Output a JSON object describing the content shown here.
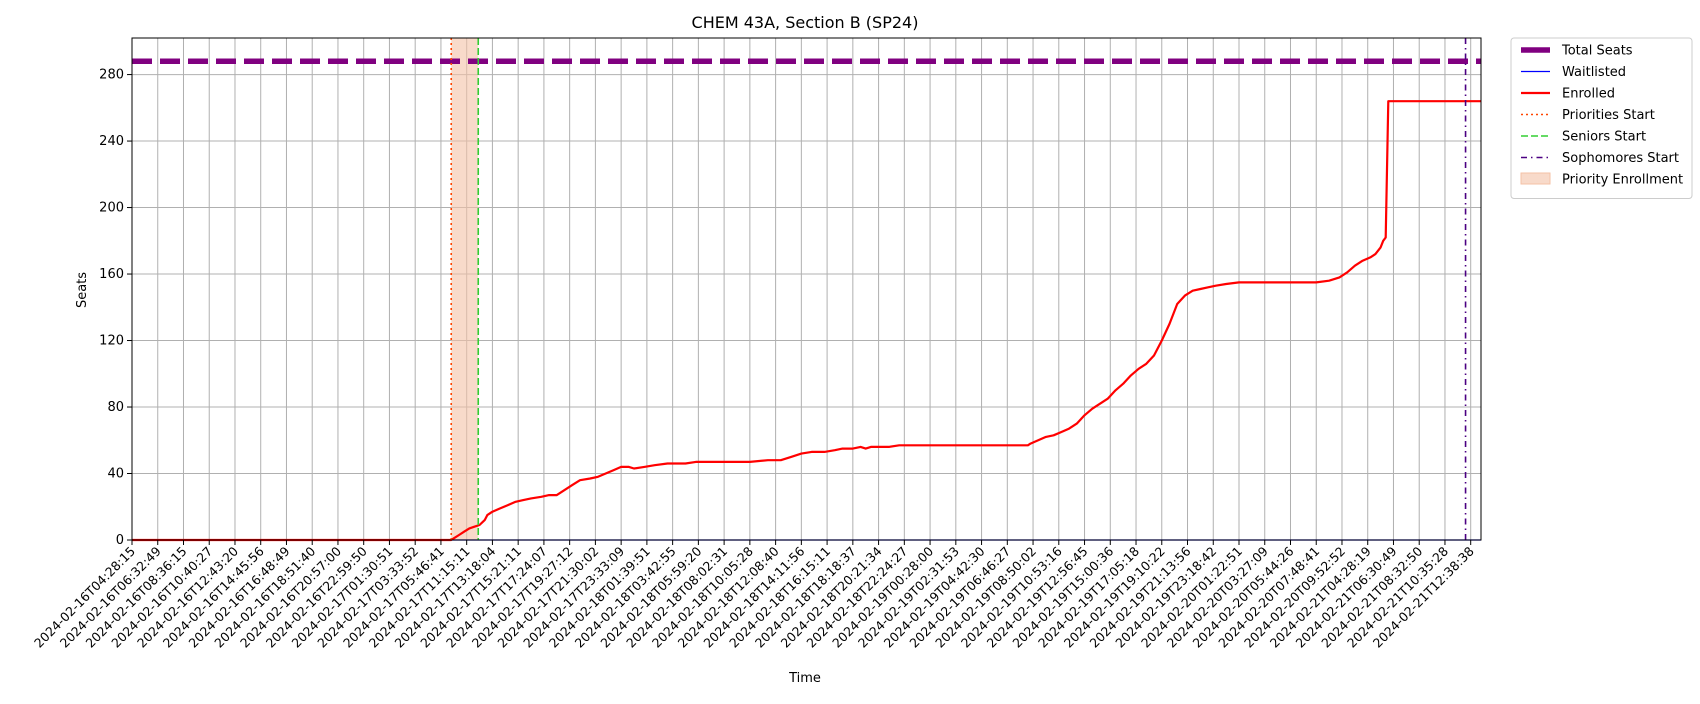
{
  "chart_data": {
    "type": "line",
    "title": "CHEM 43A, Section B (SP24)",
    "xlabel": "Time",
    "ylabel": "Seats",
    "ylim": [
      0,
      302
    ],
    "yticks": [
      0,
      40,
      80,
      120,
      160,
      200,
      240,
      280
    ],
    "grid": true,
    "legend_position": "outside-top-right",
    "x_tick_labels": [
      "2024-02-16T04:28:15",
      "2024-02-16T06:32:49",
      "2024-02-16T08:36:15",
      "2024-02-16T10:40:27",
      "2024-02-16T12:43:20",
      "2024-02-16T14:45:56",
      "2024-02-16T16:48:49",
      "2024-02-16T18:51:40",
      "2024-02-16T20:57:00",
      "2024-02-16T22:59:50",
      "2024-02-17T01:30:51",
      "2024-02-17T03:33:52",
      "2024-02-17T05:46:41",
      "2024-02-17T11:15:11",
      "2024-02-17T13:18:04",
      "2024-02-17T15:21:11",
      "2024-02-17T17:24:07",
      "2024-02-17T19:27:12",
      "2024-02-17T21:30:02",
      "2024-02-17T23:33:09",
      "2024-02-18T01:39:51",
      "2024-02-18T03:42:55",
      "2024-02-18T05:59:20",
      "2024-02-18T08:02:31",
      "2024-02-18T10:05:28",
      "2024-02-18T12:08:40",
      "2024-02-18T14:11:56",
      "2024-02-18T16:15:11",
      "2024-02-18T18:18:37",
      "2024-02-18T20:21:34",
      "2024-02-18T22:24:27",
      "2024-02-19T00:28:00",
      "2024-02-19T02:31:53",
      "2024-02-19T04:42:30",
      "2024-02-19T06:46:27",
      "2024-02-19T08:50:02",
      "2024-02-19T10:53:16",
      "2024-02-19T12:56:45",
      "2024-02-19T15:00:36",
      "2024-02-19T17:05:18",
      "2024-02-19T19:10:22",
      "2024-02-19T21:13:56",
      "2024-02-19T23:18:42",
      "2024-02-20T01:22:51",
      "2024-02-20T03:27:09",
      "2024-02-20T05:44:26",
      "2024-02-20T07:48:41",
      "2024-02-20T09:52:52",
      "2024-02-21T04:28:19",
      "2024-02-21T06:30:49",
      "2024-02-21T08:32:50",
      "2024-02-21T10:35:28",
      "2024-02-21T12:38:38"
    ],
    "series": [
      {
        "name": "Total Seats",
        "style": "dashed-thick",
        "color": "#800080",
        "points": [
          [
            0,
            288
          ],
          [
            52.4,
            288
          ]
        ]
      },
      {
        "name": "Waitlisted",
        "style": "solid-thin",
        "color": "#0000ff",
        "points": [
          [
            0,
            0
          ],
          [
            52.4,
            0
          ]
        ]
      },
      {
        "name": "Enrolled",
        "style": "solid",
        "color": "#ff0000",
        "points": [
          [
            0,
            0
          ],
          [
            12.4,
            0
          ],
          [
            12.5,
            1
          ],
          [
            12.7,
            3
          ],
          [
            12.9,
            5
          ],
          [
            13.1,
            7
          ],
          [
            13.3,
            8
          ],
          [
            13.5,
            9
          ],
          [
            13.7,
            12
          ],
          [
            13.8,
            15
          ],
          [
            14.0,
            17
          ],
          [
            14.3,
            19
          ],
          [
            14.6,
            21
          ],
          [
            14.9,
            23
          ],
          [
            15.2,
            24
          ],
          [
            15.5,
            25
          ],
          [
            15.9,
            26
          ],
          [
            16.2,
            27
          ],
          [
            16.5,
            27
          ],
          [
            16.8,
            30
          ],
          [
            17.1,
            33
          ],
          [
            17.4,
            36
          ],
          [
            17.8,
            37
          ],
          [
            18.1,
            38
          ],
          [
            18.4,
            40
          ],
          [
            18.7,
            42
          ],
          [
            19.0,
            44
          ],
          [
            19.3,
            44
          ],
          [
            19.5,
            43
          ],
          [
            19.9,
            44
          ],
          [
            20.3,
            45
          ],
          [
            20.8,
            46
          ],
          [
            21.5,
            46
          ],
          [
            21.9,
            47
          ],
          [
            23.0,
            47
          ],
          [
            24.0,
            47
          ],
          [
            24.7,
            48
          ],
          [
            25.2,
            48
          ],
          [
            25.6,
            50
          ],
          [
            26.0,
            52
          ],
          [
            26.4,
            53
          ],
          [
            26.9,
            53
          ],
          [
            27.3,
            54
          ],
          [
            27.6,
            55
          ],
          [
            28.0,
            55
          ],
          [
            28.3,
            56
          ],
          [
            28.5,
            55
          ],
          [
            28.7,
            56
          ],
          [
            29.4,
            56
          ],
          [
            29.8,
            57
          ],
          [
            31.0,
            57
          ],
          [
            33.0,
            57
          ],
          [
            34.8,
            57
          ],
          [
            34.9,
            58
          ],
          [
            35.2,
            60
          ],
          [
            35.5,
            62
          ],
          [
            35.8,
            63
          ],
          [
            36.1,
            65
          ],
          [
            36.4,
            67
          ],
          [
            36.7,
            70
          ],
          [
            37.0,
            75
          ],
          [
            37.3,
            79
          ],
          [
            37.6,
            82
          ],
          [
            37.9,
            85
          ],
          [
            38.2,
            90
          ],
          [
            38.5,
            94
          ],
          [
            38.8,
            99
          ],
          [
            39.1,
            103
          ],
          [
            39.4,
            106
          ],
          [
            39.7,
            111
          ],
          [
            40.0,
            120
          ],
          [
            40.3,
            130
          ],
          [
            40.6,
            142
          ],
          [
            40.9,
            147
          ],
          [
            41.2,
            150
          ],
          [
            41.5,
            151
          ],
          [
            41.8,
            152
          ],
          [
            42.1,
            153
          ],
          [
            42.5,
            154
          ],
          [
            43.0,
            155
          ],
          [
            44.0,
            155
          ],
          [
            45.0,
            155
          ],
          [
            46.0,
            155
          ],
          [
            46.5,
            156
          ],
          [
            46.9,
            158
          ],
          [
            47.2,
            161
          ],
          [
            47.5,
            165
          ],
          [
            47.8,
            168
          ],
          [
            48.1,
            170
          ],
          [
            48.3,
            172
          ],
          [
            48.5,
            176
          ],
          [
            48.6,
            180
          ],
          [
            48.7,
            182
          ],
          [
            48.8,
            264
          ],
          [
            52.4,
            264
          ]
        ]
      }
    ],
    "markers": [
      {
        "name": "Priorities Start",
        "x": 12.4,
        "style": "dotted",
        "color": "#ff4500"
      },
      {
        "name": "Seniors Start",
        "x": 13.45,
        "style": "dashed",
        "color": "#32cd32"
      },
      {
        "name": "Sophomores Start",
        "x": 51.8,
        "style": "dashdot",
        "color": "#4b0082"
      }
    ],
    "shaded_regions": [
      {
        "name": "Priority Enrollment",
        "x_start": 12.4,
        "x_end": 13.45,
        "color": "#f4c1a6"
      }
    ],
    "x_range": [
      0,
      52.4
    ]
  }
}
